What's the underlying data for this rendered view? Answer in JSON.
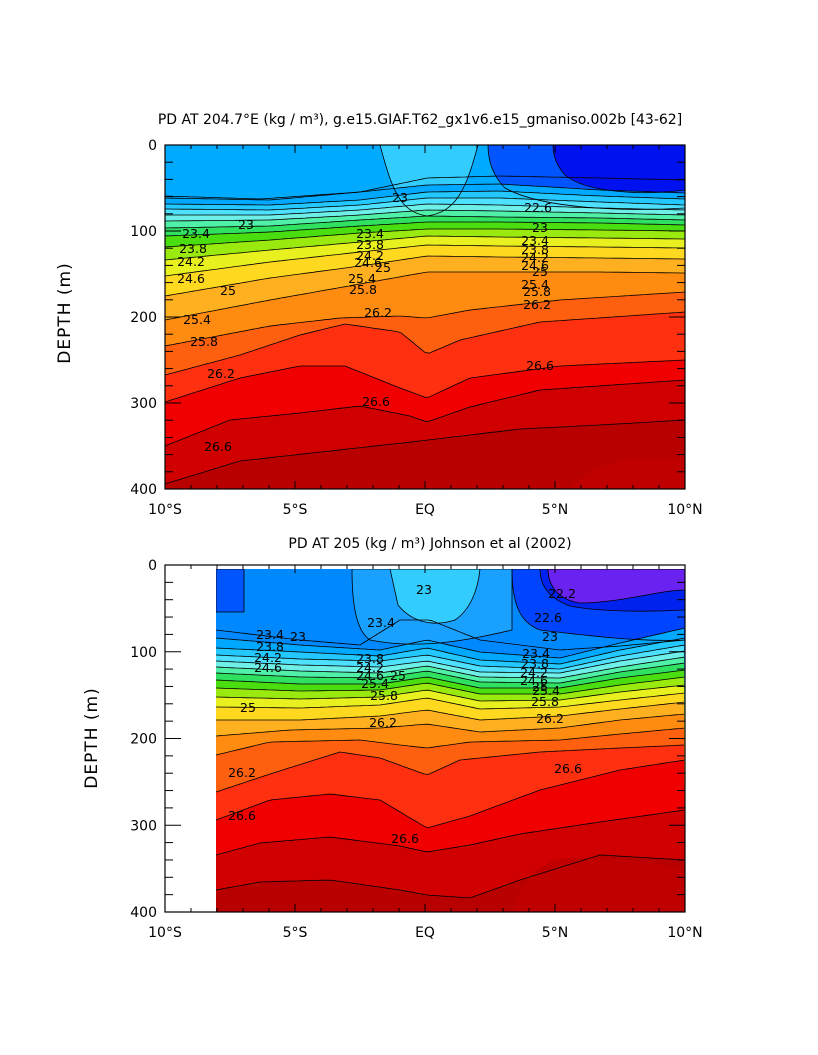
{
  "chart_data": [
    {
      "type": "heatmap",
      "title": "PD AT 204.7°E (kg / m³), g.e15.GIAF.T62_gx1v6.e15_gmaniso.002b [43-62]",
      "ylabel": "DEPTH (m)",
      "xlabel": "",
      "xlim": [
        -10,
        10
      ],
      "ylim": [
        400,
        0
      ],
      "x_ticks": [
        "10°S",
        "5°S",
        "EQ",
        "5°N",
        "10°N"
      ],
      "y_ticks": [
        "0",
        "100",
        "200",
        "300",
        "400"
      ],
      "contour_labels": [
        "23",
        "23.4",
        "23.8",
        "24.2",
        "24.6",
        "25",
        "25.4",
        "25.8",
        "26.2",
        "26.6",
        "23",
        "23.4",
        "23.8",
        "24.2",
        "24.6",
        "25",
        "25.4",
        "25.8",
        "26.2",
        "22.6",
        "23",
        "23.4",
        "23.8",
        "24.2",
        "24.6",
        "25",
        "25.4",
        "25.8",
        "26.2",
        "26.6",
        "26.6",
        "23.4",
        "25"
      ]
    },
    {
      "type": "heatmap",
      "title": "PD AT 205 (kg / m³) Johnson et al (2002)",
      "ylabel": "DEPTH (m)",
      "xlabel": "",
      "xlim": [
        -10,
        10
      ],
      "ylim": [
        400,
        0
      ],
      "data_xlim": [
        -8,
        10
      ],
      "x_ticks": [
        "10°S",
        "5°S",
        "EQ",
        "5°N",
        "10°N"
      ],
      "y_ticks": [
        "0",
        "100",
        "200",
        "300",
        "400"
      ],
      "contour_labels": [
        "23",
        "23.4",
        "23.8",
        "24.2",
        "24.6",
        "25",
        "25.4",
        "25.8",
        "26.2",
        "26.6",
        "23",
        "23.4",
        "23.8",
        "24.2",
        "24.6",
        "25",
        "25.4",
        "25.8",
        "26.2",
        "22.2",
        "22.6",
        "23",
        "23.4",
        "23.8",
        "24.2",
        "24.6",
        "25",
        "25.4",
        "25.8",
        "26.2",
        "26.6",
        "26.6",
        "25",
        "26.2"
      ]
    }
  ]
}
